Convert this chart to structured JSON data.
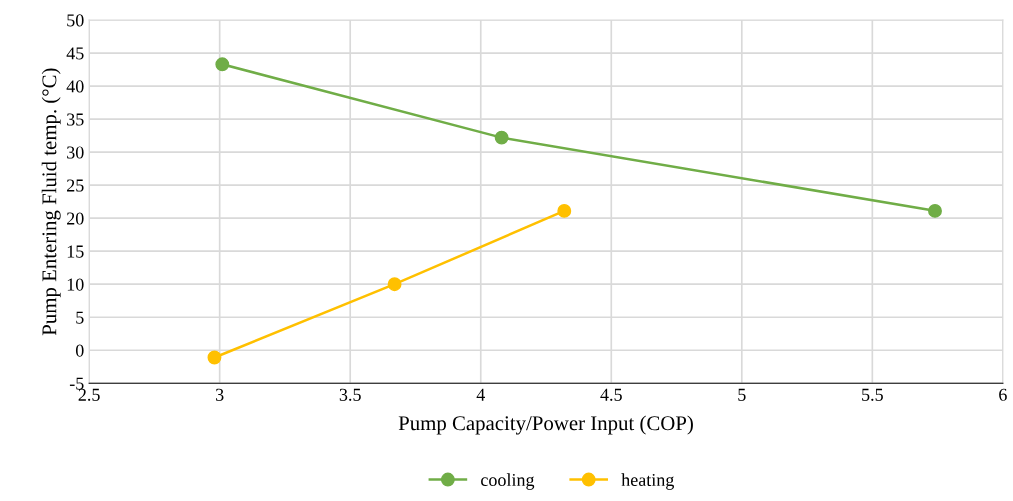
{
  "chart_data": {
    "type": "line",
    "xlabel": "Pump Capacity/Power Input (COP)",
    "ylabel": "Pump Entering Fluid temp. (°C)",
    "series": [
      {
        "name": "cooling",
        "color": "#70ad47",
        "x": [
          3.01,
          4.08,
          5.74
        ],
        "values": [
          43.3,
          32.2,
          21.1
        ]
      },
      {
        "name": "heating",
        "color": "#ffc000",
        "x": [
          2.98,
          3.67,
          4.32
        ],
        "values": [
          -1.1,
          10,
          21.1
        ]
      }
    ],
    "xlim": [
      2.5,
      6
    ],
    "xticks": [
      2.5,
      3,
      3.5,
      4,
      4.5,
      5,
      5.5,
      6
    ],
    "ylim": [
      -5,
      50
    ],
    "yticks": [
      -5,
      0,
      5,
      10,
      15,
      20,
      25,
      30,
      35,
      40,
      45,
      50
    ],
    "grid": true,
    "legend": "bottom",
    "marker": "circle",
    "line_style": "solid"
  }
}
